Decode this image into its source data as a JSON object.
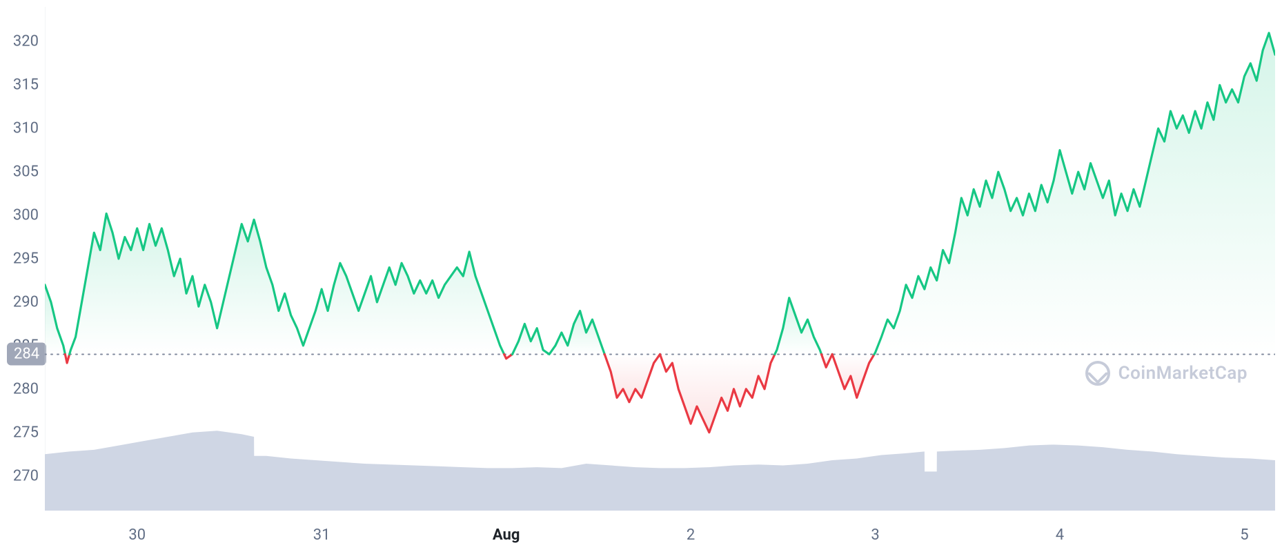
{
  "chart": {
    "type": "line-area-baseline",
    "ylim": [
      266,
      324
    ],
    "ytick_step": 5,
    "yticks": [
      270,
      275,
      280,
      285,
      290,
      295,
      300,
      305,
      310,
      315,
      320
    ],
    "baseline_value": 284,
    "baseline_label": "284",
    "xlim": [
      0,
      100
    ],
    "xticks": [
      {
        "pos": 7.5,
        "label": "30",
        "bold": false
      },
      {
        "pos": 22.5,
        "label": "31",
        "bold": false
      },
      {
        "pos": 37.5,
        "label": "Aug",
        "bold": true
      },
      {
        "pos": 52.5,
        "label": "2",
        "bold": false
      },
      {
        "pos": 67.5,
        "label": "3",
        "bold": false
      },
      {
        "pos": 82.5,
        "label": "4",
        "bold": false
      },
      {
        "pos": 97.5,
        "label": "5",
        "bold": false
      }
    ],
    "colors": {
      "background": "#ffffff",
      "grid_border": "#e6e8ec",
      "axis_text": "#616e85",
      "up_line": "#16c784",
      "down_line": "#ea3943",
      "up_fill": "rgba(22,199,132,0.12)",
      "down_fill": "rgba(234,57,67,0.10)",
      "baseline_dots": "#808a9d",
      "baseline_badge_bg": "#a0a7b8",
      "baseline_badge_text": "#ffffff",
      "volume_fill": "#cfd6e4",
      "watermark": "#c6cbd9"
    },
    "line_width": 3.2,
    "price_series": [
      [
        0.0,
        292.0
      ],
      [
        0.5,
        290.0
      ],
      [
        1.0,
        287.0
      ],
      [
        1.5,
        285.0
      ],
      [
        1.8,
        283.0
      ],
      [
        2.1,
        284.5
      ],
      [
        2.5,
        286.0
      ],
      [
        3.0,
        290.0
      ],
      [
        3.5,
        294.0
      ],
      [
        4.0,
        298.0
      ],
      [
        4.5,
        296.0
      ],
      [
        5.0,
        300.2
      ],
      [
        5.5,
        298.0
      ],
      [
        6.0,
        295.0
      ],
      [
        6.5,
        297.5
      ],
      [
        7.0,
        296.0
      ],
      [
        7.5,
        298.5
      ],
      [
        8.0,
        296.0
      ],
      [
        8.5,
        299.0
      ],
      [
        9.0,
        296.5
      ],
      [
        9.5,
        298.5
      ],
      [
        10.0,
        296.0
      ],
      [
        10.5,
        293.0
      ],
      [
        11.0,
        295.0
      ],
      [
        11.5,
        291.0
      ],
      [
        12.0,
        293.0
      ],
      [
        12.5,
        289.5
      ],
      [
        13.0,
        292.0
      ],
      [
        13.5,
        290.0
      ],
      [
        14.0,
        287.0
      ],
      [
        14.5,
        290.0
      ],
      [
        15.0,
        293.0
      ],
      [
        15.5,
        296.0
      ],
      [
        16.0,
        299.0
      ],
      [
        16.5,
        297.0
      ],
      [
        17.0,
        299.5
      ],
      [
        17.5,
        297.0
      ],
      [
        18.0,
        294.0
      ],
      [
        18.5,
        292.0
      ],
      [
        19.0,
        289.0
      ],
      [
        19.5,
        291.0
      ],
      [
        20.0,
        288.5
      ],
      [
        20.5,
        287.0
      ],
      [
        21.0,
        285.0
      ],
      [
        21.5,
        287.0
      ],
      [
        22.0,
        289.0
      ],
      [
        22.5,
        291.5
      ],
      [
        23.0,
        289.0
      ],
      [
        23.5,
        292.0
      ],
      [
        24.0,
        294.5
      ],
      [
        24.5,
        293.0
      ],
      [
        25.0,
        291.0
      ],
      [
        25.5,
        289.0
      ],
      [
        26.0,
        291.0
      ],
      [
        26.5,
        293.0
      ],
      [
        27.0,
        290.0
      ],
      [
        27.5,
        292.0
      ],
      [
        28.0,
        294.0
      ],
      [
        28.5,
        292.0
      ],
      [
        29.0,
        294.5
      ],
      [
        29.5,
        293.0
      ],
      [
        30.0,
        291.0
      ],
      [
        30.5,
        292.5
      ],
      [
        31.0,
        291.0
      ],
      [
        31.5,
        292.5
      ],
      [
        32.0,
        290.5
      ],
      [
        32.5,
        292.0
      ],
      [
        33.0,
        293.0
      ],
      [
        33.5,
        294.0
      ],
      [
        34.0,
        293.0
      ],
      [
        34.5,
        295.8
      ],
      [
        35.0,
        293.0
      ],
      [
        35.5,
        291.0
      ],
      [
        36.0,
        289.0
      ],
      [
        36.5,
        287.0
      ],
      [
        37.0,
        285.0
      ],
      [
        37.5,
        283.5
      ],
      [
        38.0,
        284.0
      ],
      [
        38.5,
        285.5
      ],
      [
        39.0,
        287.5
      ],
      [
        39.5,
        285.5
      ],
      [
        40.0,
        287.0
      ],
      [
        40.5,
        284.5
      ],
      [
        41.0,
        284.0
      ],
      [
        41.5,
        285.0
      ],
      [
        42.0,
        286.5
      ],
      [
        42.5,
        285.0
      ],
      [
        43.0,
        287.5
      ],
      [
        43.5,
        289.0
      ],
      [
        44.0,
        286.5
      ],
      [
        44.5,
        288.0
      ],
      [
        45.0,
        286.0
      ],
      [
        45.5,
        284.0
      ],
      [
        46.0,
        282.0
      ],
      [
        46.5,
        279.0
      ],
      [
        47.0,
        280.0
      ],
      [
        47.5,
        278.5
      ],
      [
        48.0,
        280.0
      ],
      [
        48.5,
        279.0
      ],
      [
        49.0,
        281.0
      ],
      [
        49.5,
        283.0
      ],
      [
        50.0,
        284.0
      ],
      [
        50.5,
        282.0
      ],
      [
        51.0,
        283.0
      ],
      [
        51.5,
        280.0
      ],
      [
        52.0,
        278.0
      ],
      [
        52.5,
        276.0
      ],
      [
        53.0,
        278.0
      ],
      [
        53.5,
        276.5
      ],
      [
        54.0,
        275.0
      ],
      [
        54.5,
        277.0
      ],
      [
        55.0,
        279.0
      ],
      [
        55.5,
        277.5
      ],
      [
        56.0,
        280.0
      ],
      [
        56.5,
        278.0
      ],
      [
        57.0,
        280.0
      ],
      [
        57.5,
        279.0
      ],
      [
        58.0,
        281.5
      ],
      [
        58.5,
        280.0
      ],
      [
        59.0,
        283.0
      ],
      [
        59.5,
        284.5
      ],
      [
        60.0,
        287.0
      ],
      [
        60.5,
        290.5
      ],
      [
        61.0,
        288.5
      ],
      [
        61.5,
        286.5
      ],
      [
        62.0,
        288.0
      ],
      [
        62.5,
        286.0
      ],
      [
        63.0,
        284.5
      ],
      [
        63.5,
        282.5
      ],
      [
        64.0,
        284.0
      ],
      [
        64.5,
        282.0
      ],
      [
        65.0,
        280.0
      ],
      [
        65.5,
        281.5
      ],
      [
        66.0,
        279.0
      ],
      [
        66.5,
        281.0
      ],
      [
        67.0,
        283.0
      ],
      [
        67.5,
        284.2
      ],
      [
        68.0,
        286.0
      ],
      [
        68.5,
        288.0
      ],
      [
        69.0,
        287.0
      ],
      [
        69.5,
        289.0
      ],
      [
        70.0,
        292.0
      ],
      [
        70.5,
        290.5
      ],
      [
        71.0,
        293.0
      ],
      [
        71.5,
        291.5
      ],
      [
        72.0,
        294.0
      ],
      [
        72.5,
        292.5
      ],
      [
        73.0,
        296.0
      ],
      [
        73.5,
        294.5
      ],
      [
        74.0,
        298.0
      ],
      [
        74.5,
        302.0
      ],
      [
        75.0,
        300.0
      ],
      [
        75.5,
        303.0
      ],
      [
        76.0,
        301.0
      ],
      [
        76.5,
        304.0
      ],
      [
        77.0,
        302.0
      ],
      [
        77.5,
        305.0
      ],
      [
        78.0,
        303.0
      ],
      [
        78.5,
        300.5
      ],
      [
        79.0,
        302.0
      ],
      [
        79.5,
        300.0
      ],
      [
        80.0,
        302.5
      ],
      [
        80.5,
        300.5
      ],
      [
        81.0,
        303.5
      ],
      [
        81.5,
        301.5
      ],
      [
        82.0,
        304.0
      ],
      [
        82.5,
        307.5
      ],
      [
        83.0,
        305.0
      ],
      [
        83.5,
        302.5
      ],
      [
        84.0,
        305.0
      ],
      [
        84.5,
        303.0
      ],
      [
        85.0,
        306.0
      ],
      [
        85.5,
        304.0
      ],
      [
        86.0,
        302.0
      ],
      [
        86.5,
        304.0
      ],
      [
        87.0,
        300.0
      ],
      [
        87.5,
        302.5
      ],
      [
        88.0,
        300.5
      ],
      [
        88.5,
        303.0
      ],
      [
        89.0,
        301.0
      ],
      [
        89.5,
        304.0
      ],
      [
        90.0,
        307.0
      ],
      [
        90.5,
        310.0
      ],
      [
        91.0,
        308.5
      ],
      [
        91.5,
        312.0
      ],
      [
        92.0,
        310.0
      ],
      [
        92.5,
        311.5
      ],
      [
        93.0,
        309.5
      ],
      [
        93.5,
        312.0
      ],
      [
        94.0,
        310.0
      ],
      [
        94.5,
        313.0
      ],
      [
        95.0,
        311.0
      ],
      [
        95.5,
        315.0
      ],
      [
        96.0,
        313.0
      ],
      [
        96.5,
        314.5
      ],
      [
        97.0,
        313.0
      ],
      [
        97.5,
        316.0
      ],
      [
        98.0,
        317.5
      ],
      [
        98.5,
        315.5
      ],
      [
        99.0,
        319.0
      ],
      [
        99.5,
        321.0
      ],
      [
        100.0,
        318.5
      ]
    ],
    "volume_series": [
      [
        0,
        272.5
      ],
      [
        2,
        272.8
      ],
      [
        4,
        273.0
      ],
      [
        6,
        273.5
      ],
      [
        8,
        274.0
      ],
      [
        10,
        274.5
      ],
      [
        12,
        275.0
      ],
      [
        14,
        275.2
      ],
      [
        16,
        274.8
      ],
      [
        17.0,
        274.5
      ],
      [
        17.01,
        272.3
      ],
      [
        18,
        272.3
      ],
      [
        20,
        272.0
      ],
      [
        22,
        271.8
      ],
      [
        24,
        271.6
      ],
      [
        26,
        271.4
      ],
      [
        28,
        271.3
      ],
      [
        30,
        271.2
      ],
      [
        32,
        271.1
      ],
      [
        34,
        271.0
      ],
      [
        36,
        270.9
      ],
      [
        38,
        270.9
      ],
      [
        40,
        271.0
      ],
      [
        42,
        270.9
      ],
      [
        44,
        271.4
      ],
      [
        46,
        271.2
      ],
      [
        48,
        271.0
      ],
      [
        50,
        270.9
      ],
      [
        52,
        270.9
      ],
      [
        54,
        271.0
      ],
      [
        56,
        271.2
      ],
      [
        58,
        271.3
      ],
      [
        60,
        271.2
      ],
      [
        62,
        271.4
      ],
      [
        64,
        271.8
      ],
      [
        66,
        272.0
      ],
      [
        68,
        272.4
      ],
      [
        70,
        272.6
      ],
      [
        71.5,
        272.8
      ],
      [
        71.51,
        270.5
      ],
      [
        72.5,
        270.5
      ],
      [
        72.51,
        272.8
      ],
      [
        74,
        272.9
      ],
      [
        76,
        273.0
      ],
      [
        78,
        273.2
      ],
      [
        80,
        273.5
      ],
      [
        82,
        273.6
      ],
      [
        84,
        273.5
      ],
      [
        86,
        273.3
      ],
      [
        88,
        273.0
      ],
      [
        90,
        272.8
      ],
      [
        92,
        272.5
      ],
      [
        94,
        272.3
      ],
      [
        96,
        272.1
      ],
      [
        98,
        272.0
      ],
      [
        100,
        271.8
      ]
    ],
    "volume_baseline": 266,
    "watermark_text": "CoinMarketCap"
  }
}
